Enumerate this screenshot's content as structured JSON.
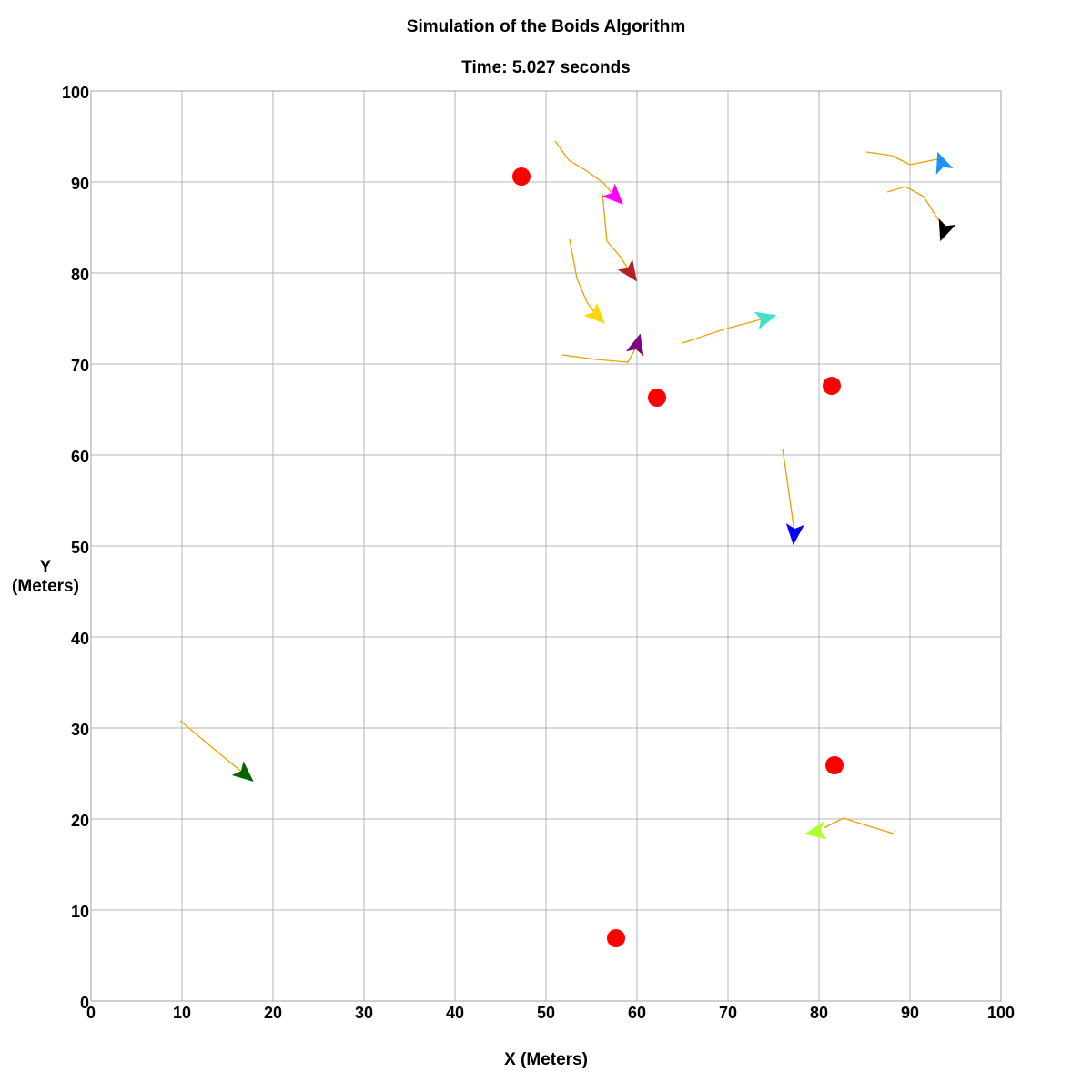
{
  "chart_data": {
    "type": "scatter",
    "title": "Simulation of the Boids Algorithm",
    "subtitle": "Time: 5.027 seconds",
    "xlabel": "X (Meters)",
    "ylabel": [
      "Y",
      "(Meters)"
    ],
    "xlim": [
      0,
      100
    ],
    "ylim": [
      0,
      100
    ],
    "xticks": [
      0,
      10,
      20,
      30,
      40,
      50,
      60,
      70,
      80,
      90,
      100
    ],
    "yticks": [
      0,
      10,
      20,
      30,
      40,
      50,
      60,
      70,
      80,
      90,
      100
    ],
    "grid": true,
    "trail_color": "#f0a000",
    "obstacle_color": "#ff0000",
    "obstacles": [
      {
        "x": 47.3,
        "y": 90.6
      },
      {
        "x": 62.2,
        "y": 66.3
      },
      {
        "x": 81.4,
        "y": 67.6
      },
      {
        "x": 81.7,
        "y": 25.9
      },
      {
        "x": 57.7,
        "y": 6.9
      }
    ],
    "boids": [
      {
        "color": "#ff00ff",
        "x": 57.5,
        "y": 88.5,
        "heading": 45,
        "trail": [
          [
            51.0,
            94.5
          ],
          [
            52.5,
            92.4
          ],
          [
            54.5,
            91.2
          ],
          [
            56.3,
            89.9
          ],
          [
            57.5,
            88.5
          ]
        ]
      },
      {
        "color": "#b22222",
        "x": 59.2,
        "y": 80.2,
        "heading": 55,
        "trail": [
          [
            56.2,
            88.7
          ],
          [
            56.7,
            83.5
          ],
          [
            58.0,
            82.0
          ],
          [
            59.2,
            80.2
          ]
        ]
      },
      {
        "color": "#ffd700",
        "x": 55.5,
        "y": 75.4,
        "heading": 45,
        "trail": [
          [
            52.6,
            83.7
          ],
          [
            53.4,
            79.4
          ],
          [
            54.5,
            76.8
          ],
          [
            55.5,
            75.4
          ]
        ]
      },
      {
        "color": "#800080",
        "x": 60.0,
        "y": 72.0,
        "heading": -75,
        "trail": [
          [
            51.8,
            71.0
          ],
          [
            55.5,
            70.5
          ],
          [
            59.0,
            70.2
          ],
          [
            60.0,
            72.0
          ]
        ]
      },
      {
        "color": "#40e0d0",
        "x": 74.0,
        "y": 75.0,
        "heading": -15,
        "trail": [
          [
            65.0,
            72.3
          ],
          [
            69.5,
            73.8
          ],
          [
            74.0,
            75.0
          ]
        ]
      },
      {
        "color": "#1e90ff",
        "x": 93.5,
        "y": 92.0,
        "heading": -110,
        "trail": [
          [
            85.2,
            93.3
          ],
          [
            88.0,
            92.9
          ],
          [
            90.0,
            91.9
          ],
          [
            93.0,
            92.5
          ]
        ]
      },
      {
        "color": "#000000",
        "x": 93.8,
        "y": 84.8,
        "heading": 110,
        "trail": [
          [
            87.5,
            88.9
          ],
          [
            89.5,
            89.5
          ],
          [
            91.5,
            88.4
          ],
          [
            93.8,
            84.8
          ]
        ]
      },
      {
        "color": "#0000ff",
        "x": 77.3,
        "y": 51.5,
        "heading": 95,
        "trail": [
          [
            76.0,
            60.7
          ],
          [
            76.7,
            55.8
          ],
          [
            77.3,
            51.5
          ]
        ]
      },
      {
        "color": "#006400",
        "x": 16.8,
        "y": 25.0,
        "heading": 40,
        "trail": [
          [
            9.8,
            30.8
          ],
          [
            13.5,
            27.7
          ],
          [
            16.8,
            25.0
          ]
        ]
      },
      {
        "color": "#adff2f",
        "x": 79.8,
        "y": 18.6,
        "heading": 170,
        "trail": [
          [
            88.2,
            18.4
          ],
          [
            85.5,
            19.2
          ],
          [
            82.7,
            20.1
          ],
          [
            80.5,
            19.0
          ]
        ]
      }
    ]
  }
}
